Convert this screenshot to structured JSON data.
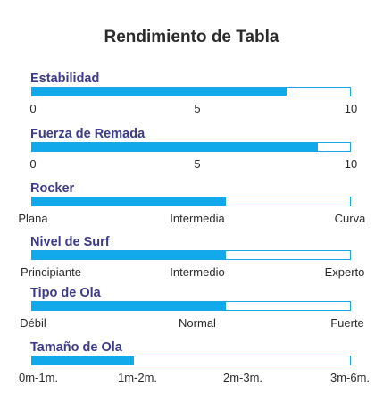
{
  "title": "Rendimiento de Tabla",
  "colors": {
    "bar_fill": "#12a9ea",
    "bar_border": "#1aa9e8",
    "label": "#3c3a8a"
  },
  "chart_data": [
    {
      "type": "bar",
      "label": "Estabilidad",
      "value": 8,
      "max": 10,
      "ticks": [
        "0",
        "5",
        "10"
      ],
      "tick_values": [
        0,
        5,
        10
      ]
    },
    {
      "type": "bar",
      "label": "Fuerza de Remada",
      "value": 9,
      "max": 10,
      "ticks": [
        "0",
        "5",
        "10"
      ],
      "tick_values": [
        0,
        5,
        10
      ]
    },
    {
      "type": "bar",
      "label": "Rocker",
      "value": 0.61,
      "max": 1,
      "ticks": [
        "Plana",
        "Intermedia",
        "Curva"
      ]
    },
    {
      "type": "bar",
      "label": "Nivel de Surf",
      "value": 0.61,
      "max": 1,
      "ticks": [
        "Principiante",
        "Intermedio",
        "Experto"
      ]
    },
    {
      "type": "bar",
      "label": "Tipo de Ola",
      "value": 0.61,
      "max": 1,
      "ticks": [
        "Débil",
        "Normal",
        "Fuerte"
      ]
    },
    {
      "type": "bar",
      "label": "Tamaño de Ola",
      "value": 0.32,
      "max": 1,
      "ticks": [
        "0m-1m.",
        "1m-2m.",
        "2m-3m.",
        "3m-6m."
      ]
    }
  ]
}
